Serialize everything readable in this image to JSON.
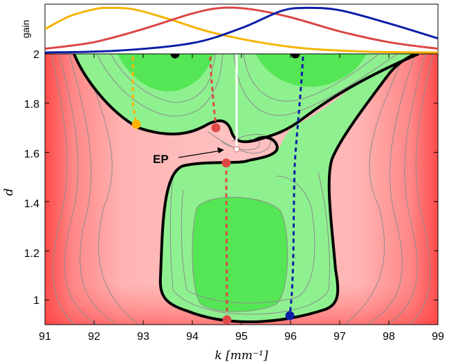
{
  "chart_data": [
    {
      "type": "contour",
      "xlabel": "k [mm⁻¹]",
      "ylabel": "d",
      "xlim": [
        91,
        99
      ],
      "ylim": [
        0.9,
        2.0
      ],
      "x_ticks": [
        91,
        92,
        93,
        94,
        95,
        96,
        97,
        98,
        99
      ],
      "y_ticks": [
        1,
        1.2,
        1.4,
        1.6,
        1.8,
        2
      ],
      "grid": false,
      "regions": [
        {
          "name": "gain region (green)",
          "color": "#55e655"
        },
        {
          "name": "loss region (red)",
          "color": "#ff6e6e"
        }
      ],
      "annotations": [
        {
          "text": "EP",
          "k": 94.85,
          "d": 1.62
        }
      ],
      "markers": [
        {
          "k": 93.65,
          "d": 2.0,
          "color": "#000000"
        },
        {
          "k": 96.1,
          "d": 2.0,
          "color": "#000000"
        },
        {
          "k": 92.85,
          "d": 1.71,
          "color": "#ffb300"
        },
        {
          "k": 94.4,
          "d": 1.7,
          "color": "#e04848"
        },
        {
          "k": 94.65,
          "d": 1.56,
          "color": "#e04848"
        },
        {
          "k": 94.7,
          "d": 0.915,
          "color": "#e04848"
        },
        {
          "k": 95.95,
          "d": 0.935,
          "color": "#0a1ea8"
        }
      ],
      "paths": [
        {
          "style": "dashed",
          "color": "#ffb300",
          "points": [
            [
              92.9,
              1.98
            ],
            [
              92.9,
              1.8
            ],
            [
              92.85,
              1.71
            ]
          ]
        },
        {
          "style": "dashed",
          "color": "#e04848",
          "points": [
            [
              94.25,
              1.98
            ],
            [
              94.3,
              1.85
            ],
            [
              94.4,
              1.7
            ]
          ]
        },
        {
          "style": "dashed",
          "color": "#e04848",
          "points": [
            [
              94.65,
              1.56
            ],
            [
              94.68,
              1.2
            ],
            [
              94.7,
              0.915
            ]
          ]
        },
        {
          "style": "dashed",
          "color": "#0a1ea8",
          "points": [
            [
              96.05,
              1.98
            ],
            [
              95.9,
              1.6
            ],
            [
              96.0,
              1.2
            ],
            [
              95.95,
              0.935
            ]
          ]
        },
        {
          "style": "solid",
          "color": "#ffffff",
          "points": [
            [
              94.85,
              2.0
            ],
            [
              94.85,
              1.62
            ]
          ]
        }
      ]
    },
    {
      "type": "line",
      "ylabel": "gain",
      "xlim": [
        91,
        99
      ],
      "series": [
        {
          "color": "#f5b400",
          "x": [
            91,
            91.5,
            92,
            92.3,
            92.8,
            93.5,
            94.5,
            96,
            97.5,
            99
          ],
          "values": [
            0.5,
            0.77,
            0.92,
            0.95,
            0.92,
            0.72,
            0.4,
            0.12,
            0.02,
            0.0
          ]
        },
        {
          "color": "#dc4646",
          "x": [
            91,
            92,
            93,
            94,
            94.6,
            95.2,
            96,
            97,
            98,
            99
          ],
          "values": [
            0.08,
            0.22,
            0.5,
            0.83,
            0.95,
            0.92,
            0.75,
            0.45,
            0.22,
            0.08
          ]
        },
        {
          "color": "#0a1ea8",
          "x": [
            91,
            92.5,
            94,
            95,
            95.8,
            96.3,
            97,
            98,
            99
          ],
          "values": [
            0.0,
            0.04,
            0.2,
            0.52,
            0.88,
            0.95,
            0.9,
            0.62,
            0.3
          ]
        }
      ]
    }
  ]
}
